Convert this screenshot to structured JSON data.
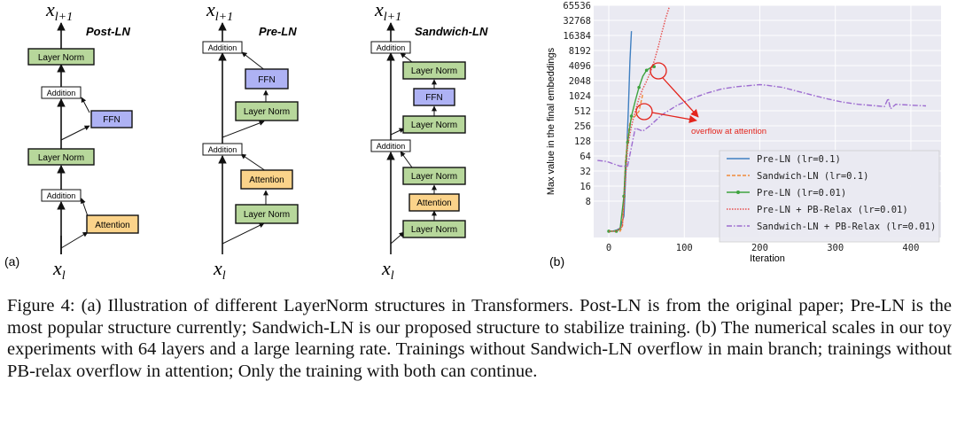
{
  "panel_a": {
    "label": "(a)",
    "diagrams": [
      {
        "title": "Post-LN",
        "output": "x",
        "output_sub": "l+1",
        "input": "x",
        "input_sub": "l",
        "blocks": {
          "norm_top": "Layer Norm",
          "add_top": "Addition",
          "ffn": "FFN",
          "norm_mid": "Layer Norm",
          "add_bot": "Addition",
          "attention": "Attention"
        }
      },
      {
        "title": "Pre-LN",
        "output": "x",
        "output_sub": "l+1",
        "input": "x",
        "input_sub": "l",
        "blocks": {
          "add_top": "Addition",
          "ffn": "FFN",
          "norm_ffn": "Layer Norm",
          "add_mid": "Addition",
          "attention": "Attention",
          "norm_attn": "Layer Norm"
        }
      },
      {
        "title": "Sandwich-LN",
        "output": "x",
        "output_sub": "l+1",
        "input": "x",
        "input_sub": "l",
        "blocks": {
          "add_top": "Addition",
          "norm_post_ffn": "Layer Norm",
          "ffn": "FFN",
          "norm_pre_ffn": "Layer Norm",
          "add_mid": "Addition",
          "norm_post_attn": "Layer Norm",
          "attention": "Attention",
          "norm_pre_attn": "Layer Norm"
        }
      }
    ],
    "colors": {
      "layer_norm": "#b7d79b",
      "ffn": "#aeb2f4",
      "attention": "#fbd38a",
      "addition": "#ffffff"
    }
  },
  "panel_b": {
    "label": "(b)",
    "annotation": "overflow at attention",
    "chart_data": {
      "type": "line",
      "xlabel": "Iteration",
      "ylabel": "Max value in the final embeddings",
      "yscale": "log2",
      "xlim": [
        -20,
        440
      ],
      "ylim": [
        1.5,
        65536
      ],
      "xticks": [
        0,
        100,
        200,
        300,
        400
      ],
      "yticks": [
        8,
        16,
        32,
        64,
        128,
        256,
        512,
        1024,
        2048,
        4096,
        8192,
        16384,
        32768,
        65536
      ],
      "grid": true,
      "legend_position": "lower-right",
      "series": [
        {
          "name": "Pre-LN (lr=0.1)",
          "color": "#3f7fc1",
          "style": "solid",
          "x": [
            0,
            5,
            10,
            15,
            20,
            23,
            26,
            28,
            30
          ],
          "y": [
            2,
            2,
            2.1,
            2.3,
            4,
            40,
            600,
            5000,
            20000
          ]
        },
        {
          "name": "Sandwich-LN (lr=0.1)",
          "color": "#f08a3a",
          "style": "dashed",
          "x": [
            0,
            10,
            15,
            18,
            20,
            22,
            25,
            28,
            30,
            35,
            40,
            45
          ],
          "y": [
            2,
            2,
            2,
            2.5,
            10,
            50,
            140,
            300,
            350,
            400,
            500,
            1100
          ]
        },
        {
          "name": "Pre-LN (lr=0.01)",
          "color": "#3fa33f",
          "style": "solid-marker",
          "x": [
            0,
            5,
            10,
            15,
            20,
            22,
            25,
            28,
            30,
            35,
            40,
            45,
            50,
            55,
            60
          ],
          "y": [
            2,
            2,
            2,
            2.2,
            10,
            40,
            120,
            250,
            400,
            800,
            1500,
            2500,
            3300,
            3700,
            3900
          ]
        },
        {
          "name": "Pre-LN + PB-Relax (lr=0.01)",
          "color": "#e64c4c",
          "style": "dotted",
          "x": [
            0,
            10,
            18,
            22,
            25,
            30,
            35,
            40,
            45,
            50,
            55,
            60,
            65,
            70,
            75,
            80
          ],
          "y": [
            2,
            2,
            2.5,
            20,
            100,
            250,
            500,
            900,
            1400,
            2000,
            3000,
            5000,
            9000,
            18000,
            35000,
            60000
          ]
        },
        {
          "name": "Sandwich-LN + PB-Relax (lr=0.01)",
          "color": "#9d6cd0",
          "style": "dashdot",
          "x": [
            -15,
            -5,
            0,
            5,
            15,
            25,
            35,
            45,
            55,
            70,
            90,
            110,
            130,
            150,
            170,
            190,
            200,
            210,
            230,
            250,
            270,
            290,
            310,
            330,
            350,
            365,
            370,
            373,
            380,
            400,
            420
          ],
          "y": [
            52,
            50,
            48,
            45,
            40,
            40,
            230,
            200,
            260,
            420,
            650,
            900,
            1150,
            1400,
            1550,
            1650,
            1700,
            1650,
            1500,
            1250,
            1050,
            880,
            760,
            690,
            650,
            620,
            900,
            560,
            690,
            660,
            640
          ]
        }
      ]
    }
  },
  "caption": "Figure 4: (a) Illustration of different LayerNorm structures in Transformers. Post-LN is from the original paper; Pre-LN is the most popular structure currently; Sandwich-LN is our proposed structure to stabilize training. (b) The numerical scales in our toy experiments with 64 layers and a large learning rate. Trainings without Sandwich-LN overflow in main branch; trainings without PB-relax overflow in attention; Only the training with both can continue."
}
